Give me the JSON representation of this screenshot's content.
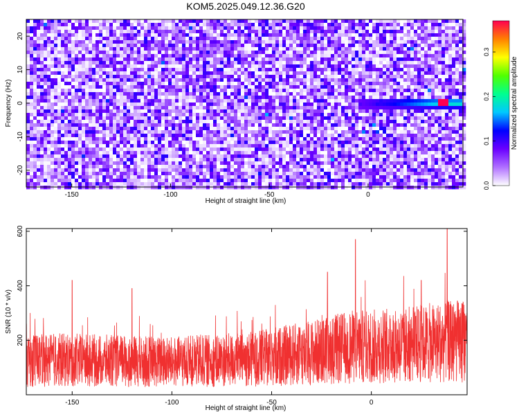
{
  "figure": {
    "title": "KOM5.2025.049.12.36.G20"
  },
  "colors": {
    "snr_line": "#f03030",
    "axis": "#000000",
    "background": "#ffffff"
  },
  "chart_data": [
    {
      "type": "heatmap",
      "name": "spectrogram",
      "xlabel": "Height of straight line (km)",
      "ylabel": "Frequency (Hz)",
      "xlim": [
        -173,
        48
      ],
      "ylim": [
        -25,
        25
      ],
      "x_ticks": [
        -150,
        -100,
        -50,
        0
      ],
      "y_ticks": [
        -20,
        -10,
        0,
        10,
        20
      ],
      "colormap": [
        "#ffffff",
        "#b070ff",
        "#6a00ff",
        "#0000ff",
        "#00c8ff",
        "#00ff90",
        "#50ff00",
        "#ffff00",
        "#ff8000",
        "#ff0050"
      ],
      "colorbar": {
        "label": "Normalized spectral amplitude",
        "range": [
          0.0,
          0.37
        ],
        "ticks": [
          0.0,
          0.1,
          0.2,
          0.3
        ],
        "tick_labels": [
          "0.0",
          "0.1",
          "0.2",
          "0.3"
        ]
      },
      "signal_track": {
        "description_frequency_hz": 0,
        "x_start": -5,
        "x_end": 47,
        "peak_x": 38,
        "peak_value": 0.37
      }
    },
    {
      "type": "line",
      "name": "snr",
      "xlabel": "Height of straight line (km)",
      "ylabel": "SNR (10 * v/v)",
      "xlim": [
        -173,
        48
      ],
      "ylim": [
        0,
        610
      ],
      "x_ticks": [
        -150,
        -100,
        -50,
        0
      ],
      "y_ticks": [
        200,
        400,
        600
      ],
      "series": [
        {
          "color": "#f03030",
          "baseline": [
            [
              -173,
              130
            ],
            [
              -100,
              120
            ],
            [
              -60,
              130
            ],
            [
              -30,
              155
            ],
            [
              -10,
              175
            ],
            [
              10,
              180
            ],
            [
              30,
              190
            ],
            [
              48,
              200
            ]
          ],
          "peaks": [
            [
              -8,
              570
            ],
            [
              38,
              610
            ],
            [
              -22,
              450
            ],
            [
              25,
              420
            ],
            [
              -150,
              420
            ],
            [
              -120,
              390
            ]
          ]
        }
      ]
    }
  ]
}
